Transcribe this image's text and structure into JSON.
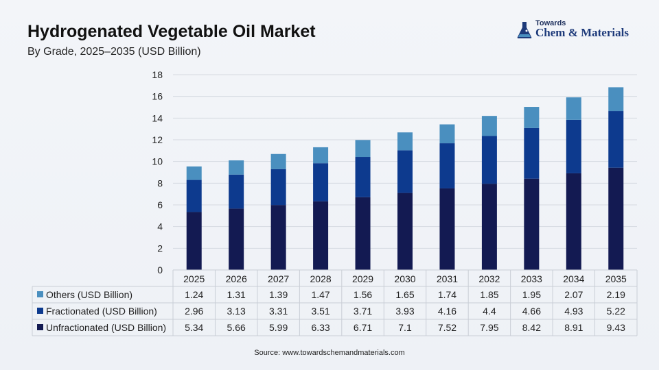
{
  "header": {
    "title": "Hydrogenated Vegetable Oil Market",
    "subtitle": "By Grade, 2025–2035 (USD Billion)"
  },
  "logo": {
    "top_text": "Towards",
    "main_text": "Chem & Materials",
    "icon": "flask-icon"
  },
  "colors": {
    "unfractionated": "#131a52",
    "fractionated": "#0d3a8e",
    "others": "#4a8fbf",
    "grid": "#d5d9e0",
    "table_border": "#c9ced6"
  },
  "chart_data": {
    "type": "bar",
    "stacked": true,
    "categories": [
      "2025",
      "2026",
      "2027",
      "2028",
      "2029",
      "2030",
      "2031",
      "2032",
      "2033",
      "2034",
      "2035"
    ],
    "series": [
      {
        "name": "Unfractionated (USD Billion)",
        "values": [
          5.34,
          5.66,
          5.99,
          6.33,
          6.71,
          7.1,
          7.52,
          7.95,
          8.42,
          8.91,
          9.43
        ],
        "display": [
          "5.34",
          "5.66",
          "5.99",
          "6.33",
          "6.71",
          "7.1",
          "7.52",
          "7.95",
          "8.42",
          "8.91",
          "9.43"
        ]
      },
      {
        "name": "Fractionated (USD Billion)",
        "values": [
          2.96,
          3.13,
          3.31,
          3.51,
          3.71,
          3.93,
          4.16,
          4.4,
          4.66,
          4.93,
          5.22
        ],
        "display": [
          "2.96",
          "3.13",
          "3.31",
          "3.51",
          "3.71",
          "3.93",
          "4.16",
          "4.4",
          "4.66",
          "4.93",
          "5.22"
        ]
      },
      {
        "name": "Others (USD Billion)",
        "values": [
          1.24,
          1.31,
          1.39,
          1.47,
          1.56,
          1.65,
          1.74,
          1.85,
          1.95,
          2.07,
          2.19
        ],
        "display": [
          "1.24",
          "1.31",
          "1.39",
          "1.47",
          "1.56",
          "1.65",
          "1.74",
          "1.85",
          "1.95",
          "2.07",
          "2.19"
        ]
      }
    ],
    "table_rows_order": [
      "Others (USD Billion)",
      "Fractionated (USD Billion)",
      "Unfractionated (USD Billion)"
    ],
    "ylim": [
      0,
      18
    ],
    "yticks": [
      0,
      2,
      4,
      6,
      8,
      10,
      12,
      14,
      16,
      18
    ],
    "grid": true,
    "legend": "data-table-below"
  },
  "footer": {
    "source": "Source: www.towardschemandmaterials.com"
  }
}
